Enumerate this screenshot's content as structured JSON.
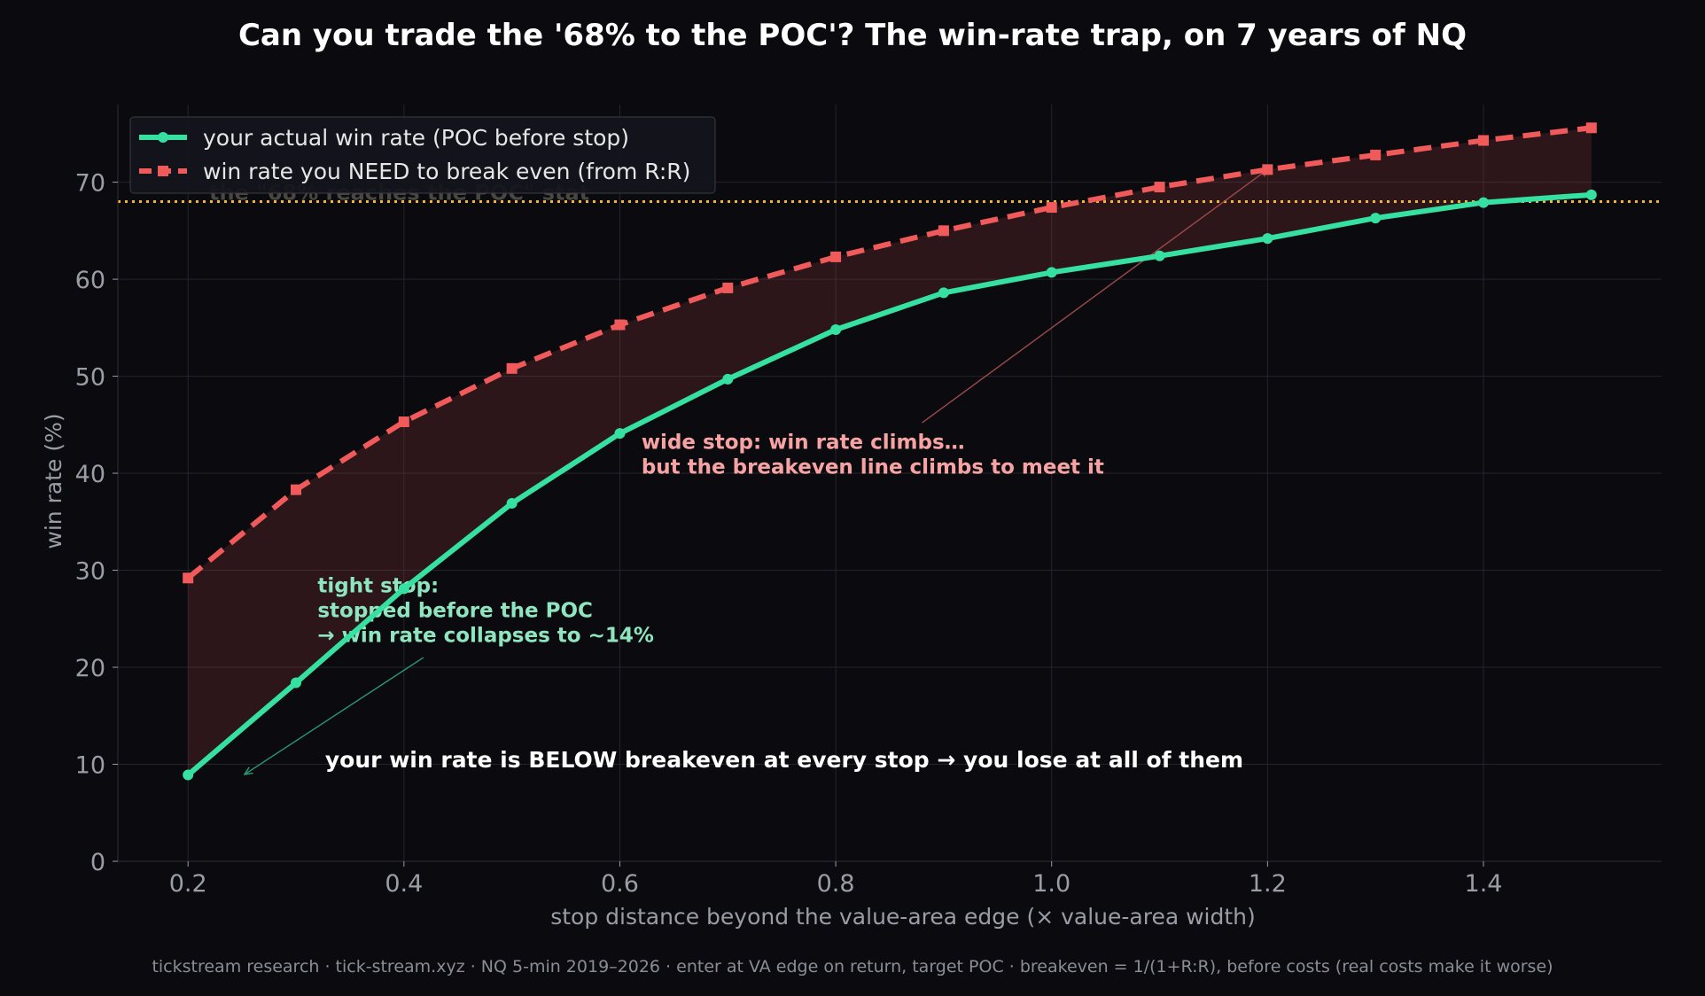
{
  "chart_data": {
    "type": "line",
    "title": "Can you trade the '68% to the POC'? The win-rate trap, on 7 years of NQ",
    "xlabel": "stop distance beyond the value-area edge  (× value-area width)",
    "ylabel": "win rate (%)",
    "x": [
      0.2,
      0.3,
      0.4,
      0.5,
      0.6,
      0.7,
      0.8,
      0.9,
      1.0,
      1.1,
      1.2,
      1.3,
      1.4,
      1.5
    ],
    "xlim": [
      0.135,
      1.565
    ],
    "ylim": [
      0,
      78
    ],
    "x_ticks": [
      0.2,
      0.4,
      0.6,
      0.8,
      1.0,
      1.2,
      1.4
    ],
    "x_tick_labels": [
      "0.2",
      "0.4",
      "0.6",
      "0.8",
      "1.0",
      "1.2",
      "1.4"
    ],
    "y_ticks": [
      0,
      10,
      20,
      30,
      40,
      50,
      60,
      70
    ],
    "y_tick_labels": [
      "0",
      "10",
      "20",
      "30",
      "40",
      "50",
      "60",
      "70"
    ],
    "grid": true,
    "legend_position": "top-left",
    "series": [
      {
        "name": "your actual win rate (POC before stop)",
        "color": "#35e0a1",
        "style": "solid",
        "marker": "circle",
        "values": [
          8.9,
          18.4,
          28.1,
          36.9,
          44.1,
          49.7,
          54.8,
          58.6,
          60.7,
          62.4,
          64.2,
          66.3,
          67.9,
          68.7
        ]
      },
      {
        "name": "win rate you NEED to break even (from R:R)",
        "color": "#f05a5a",
        "style": "dashed",
        "marker": "square",
        "values": [
          29.2,
          38.3,
          45.3,
          50.8,
          55.3,
          59.1,
          62.3,
          65.0,
          67.4,
          69.5,
          71.3,
          72.8,
          74.3,
          75.6
        ]
      }
    ],
    "reference_line": {
      "y": 68,
      "color": "#f2b632",
      "label": "the \"68% reaches the POC\" stat"
    },
    "gap_fill_color": "#c04848",
    "annotations": [
      {
        "id": "tight",
        "lines": [
          "tight stop:",
          "stopped before the POC",
          "→ win rate collapses to ~14%"
        ],
        "color": "#8ee5bf",
        "text_x": 0.32,
        "text_y": 27.7,
        "arrow_from": [
          0.418,
          21.0
        ],
        "arrow_to": [
          0.253,
          9.0
        ],
        "arrow_color": "#2a9a70"
      },
      {
        "id": "wide",
        "lines": [
          "wide stop: win rate climbs…",
          "but the breakeven line climbs to meet it"
        ],
        "color": "#f7a3a3",
        "text_x": 0.62,
        "text_y": 42.5,
        "arrow_from": [
          0.88,
          45.2
        ],
        "arrow_to": [
          1.2,
          71.3
        ],
        "arrow_color": "#9c4a4a"
      },
      {
        "id": "verdict",
        "lines": [
          "your win rate is BELOW breakeven at every stop  →  you lose at all of them"
        ],
        "color": "#ffffff",
        "text_x": 0.327,
        "text_y": 9.7
      }
    ],
    "colors": {
      "background": "#0b0b0f",
      "axis_text": "#9a9da6",
      "grid": "#23252c",
      "legend_bg": "#13151c",
      "legend_border": "#3a3d46",
      "legend_text": "#e6e6e6"
    }
  },
  "footer": "tickstream research · tick-stream.xyz · NQ 5-min 2019–2026 · enter at VA edge on return, target POC · breakeven = 1/(1+R:R), before costs (real costs make it worse)"
}
